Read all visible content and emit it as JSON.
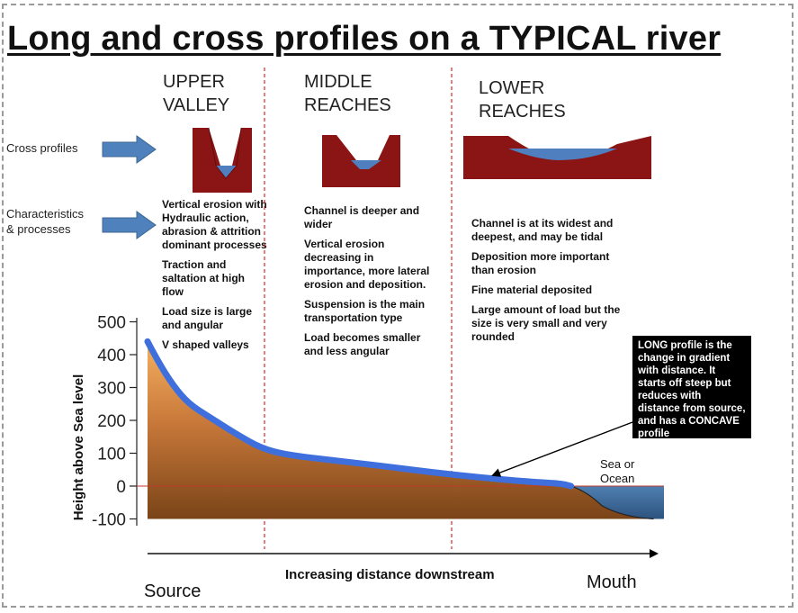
{
  "title": "Long and cross profiles on a TYPICAL river",
  "zones": {
    "upper": [
      "UPPER",
      "VALLEY"
    ],
    "middle": [
      "MIDDLE",
      "REACHES"
    ],
    "lower": [
      "LOWER",
      "REACHES"
    ]
  },
  "row_labels": {
    "cross_profiles": "Cross profiles",
    "characteristics": [
      "Characteristics",
      "& processes"
    ]
  },
  "notes": {
    "upper": [
      "Vertical erosion with Hydraulic action, abrasion & attrition dominant processes",
      "Traction and saltation at high flow",
      "Load size is large and angular",
      "V shaped valleys"
    ],
    "middle": [
      "Channel is deeper and wider",
      "Vertical erosion decreasing in importance, more lateral erosion and deposition.",
      "Suspension is the main transportation type",
      "Load becomes smaller and less angular"
    ],
    "lower": [
      "Channel is at its widest and deepest, and may be tidal",
      "Deposition more important than erosion",
      "Fine material deposited",
      "Large amount of load but the size is very small and very rounded"
    ]
  },
  "callout": "LONG profile is the change in gradient with distance.  It starts off steep but reduces with distance from source, and has a CONCAVE profile",
  "sea_label": [
    "Sea or",
    "Ocean"
  ],
  "axis": {
    "y_label": "Height above Sea level",
    "y_ticks": [
      "500",
      "400",
      "300",
      "200",
      "100",
      "0",
      "-100"
    ],
    "x_label": "Increasing distance downstream",
    "source": "Source",
    "mouth": "Mouth"
  },
  "chart_data": {
    "type": "area",
    "ylabel": "Height above Sea level",
    "xlabel": "Increasing distance downstream",
    "ylim": [
      -100,
      500
    ],
    "profile": [
      {
        "x": 0,
        "y": 440
      },
      {
        "x": 2,
        "y": 380
      },
      {
        "x": 5,
        "y": 305
      },
      {
        "x": 8,
        "y": 250
      },
      {
        "x": 12,
        "y": 210
      },
      {
        "x": 17,
        "y": 160
      },
      {
        "x": 22,
        "y": 115
      },
      {
        "x": 27,
        "y": 95
      },
      {
        "x": 35,
        "y": 80
      },
      {
        "x": 45,
        "y": 62
      },
      {
        "x": 55,
        "y": 42
      },
      {
        "x": 65,
        "y": 25
      },
      {
        "x": 75,
        "y": 12
      },
      {
        "x": 80,
        "y": 8
      },
      {
        "x": 82,
        "y": 0
      }
    ]
  },
  "colors": {
    "rock": "#8b1414",
    "water": "#4f7fbf",
    "profile_line": "#3f6fdc",
    "land_top": "#f0a54e",
    "land_bottom": "#7a4418",
    "sea": "#3d6a9a",
    "divider": "#d42c2c",
    "arrow": "#4f81bd"
  }
}
